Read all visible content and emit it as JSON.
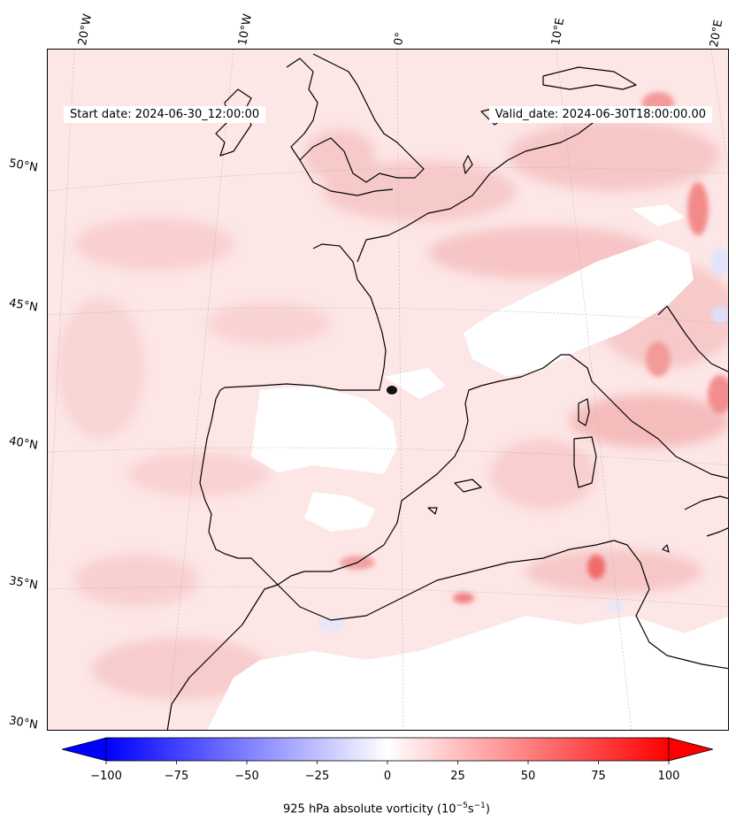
{
  "map": {
    "start_date": "Start date: 2024-06-30_12:00:00",
    "valid_date": "Valid_date: 2024-06-30T18:00:00.00",
    "longitude_labels": [
      "20°W",
      "10°W",
      "0°",
      "10°E",
      "20°E"
    ],
    "latitude_labels": [
      "50°N",
      "45°N",
      "40°N",
      "35°N",
      "30°N"
    ],
    "field": "925 hPa absolute vorticity",
    "marker": "black-dot-point"
  },
  "colorbar": {
    "tick_labels": [
      "−100",
      "−75",
      "−50",
      "−25",
      "0",
      "25",
      "50",
      "75",
      "100"
    ],
    "title_text": "925 hPa absolute vorticity (10",
    "title_exp1": "−5",
    "title_mid": "s",
    "title_exp2": "−1",
    "title_end": ")",
    "range": [
      -100,
      100
    ],
    "negative_color": "#0000ff",
    "zero_color": "#ffffff",
    "positive_color": "#ff0000"
  },
  "colors": {
    "coastline": "#000000",
    "background_field": "#fde8e8",
    "strong_positive": "#ff6666"
  }
}
